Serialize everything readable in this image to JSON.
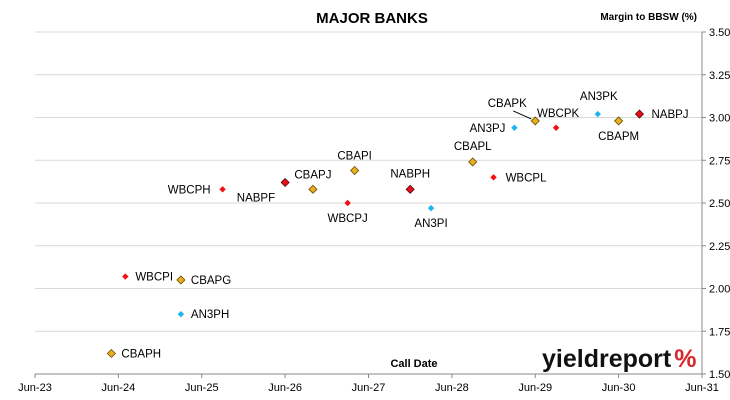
{
  "chart_data": {
    "type": "scatter",
    "title": "MAJOR BANKS",
    "xlabel": "Call Date",
    "ylabel": "Margin to BBSW (%)",
    "grid": "horizontal",
    "xlim": [
      "2023-06",
      "2031-06"
    ],
    "ylim": [
      1.5,
      3.5
    ],
    "x_ticks": [
      "Jun-23",
      "Jun-24",
      "Jun-25",
      "Jun-26",
      "Jun-27",
      "Jun-28",
      "Jun-29",
      "Jun-30",
      "Jun-31"
    ],
    "y_ticks": [
      "1.50",
      "1.75",
      "2.00",
      "2.25",
      "2.50",
      "2.75",
      "3.00",
      "3.25",
      "3.50"
    ],
    "series_colors": {
      "CBA": "#e8b020",
      "NAB": "#e8101c",
      "WBC": "#f01010",
      "ANZ": "#19b6ee"
    },
    "points": [
      {
        "label": "CBAPH",
        "group": "CBA",
        "x": "2024-05",
        "y": 1.62
      },
      {
        "label": "WBCPI",
        "group": "WBC",
        "x": "2024-07",
        "y": 2.07
      },
      {
        "label": "CBAPG",
        "group": "CBA",
        "x": "2025-03",
        "y": 2.05
      },
      {
        "label": "AN3PH",
        "group": "ANZ",
        "x": "2025-03",
        "y": 1.85
      },
      {
        "label": "WBCPH",
        "group": "WBC",
        "x": "2025-09",
        "y": 2.58
      },
      {
        "label": "NABPF",
        "group": "NAB",
        "x": "2026-06",
        "y": 2.62
      },
      {
        "label": "CBAPJ",
        "group": "CBA",
        "x": "2026-10",
        "y": 2.58
      },
      {
        "label": "CBAPI",
        "group": "CBA",
        "x": "2027-04",
        "y": 2.69
      },
      {
        "label": "WBCPJ",
        "group": "WBC",
        "x": "2027-03",
        "y": 2.5
      },
      {
        "label": "NABPH",
        "group": "NAB",
        "x": "2027-12",
        "y": 2.58
      },
      {
        "label": "AN3PI",
        "group": "ANZ",
        "x": "2028-03",
        "y": 2.47
      },
      {
        "label": "CBAPL",
        "group": "CBA",
        "x": "2028-09",
        "y": 2.74
      },
      {
        "label": "WBCPL",
        "group": "WBC",
        "x": "2028-12",
        "y": 2.65
      },
      {
        "label": "AN3PJ",
        "group": "ANZ",
        "x": "2029-03",
        "y": 2.94
      },
      {
        "label": "CBAPK",
        "group": "CBA",
        "x": "2029-06",
        "y": 2.98
      },
      {
        "label": "WBCPK",
        "group": "WBC",
        "x": "2029-09",
        "y": 2.94
      },
      {
        "label": "AN3PK",
        "group": "ANZ",
        "x": "2030-03",
        "y": 3.02
      },
      {
        "label": "CBAPM",
        "group": "CBA",
        "x": "2030-06",
        "y": 2.98
      },
      {
        "label": "NABPJ",
        "group": "NAB",
        "x": "2030-09",
        "y": 3.02
      }
    ]
  },
  "logo": {
    "text": "yieldreport",
    "symbol": "%"
  }
}
